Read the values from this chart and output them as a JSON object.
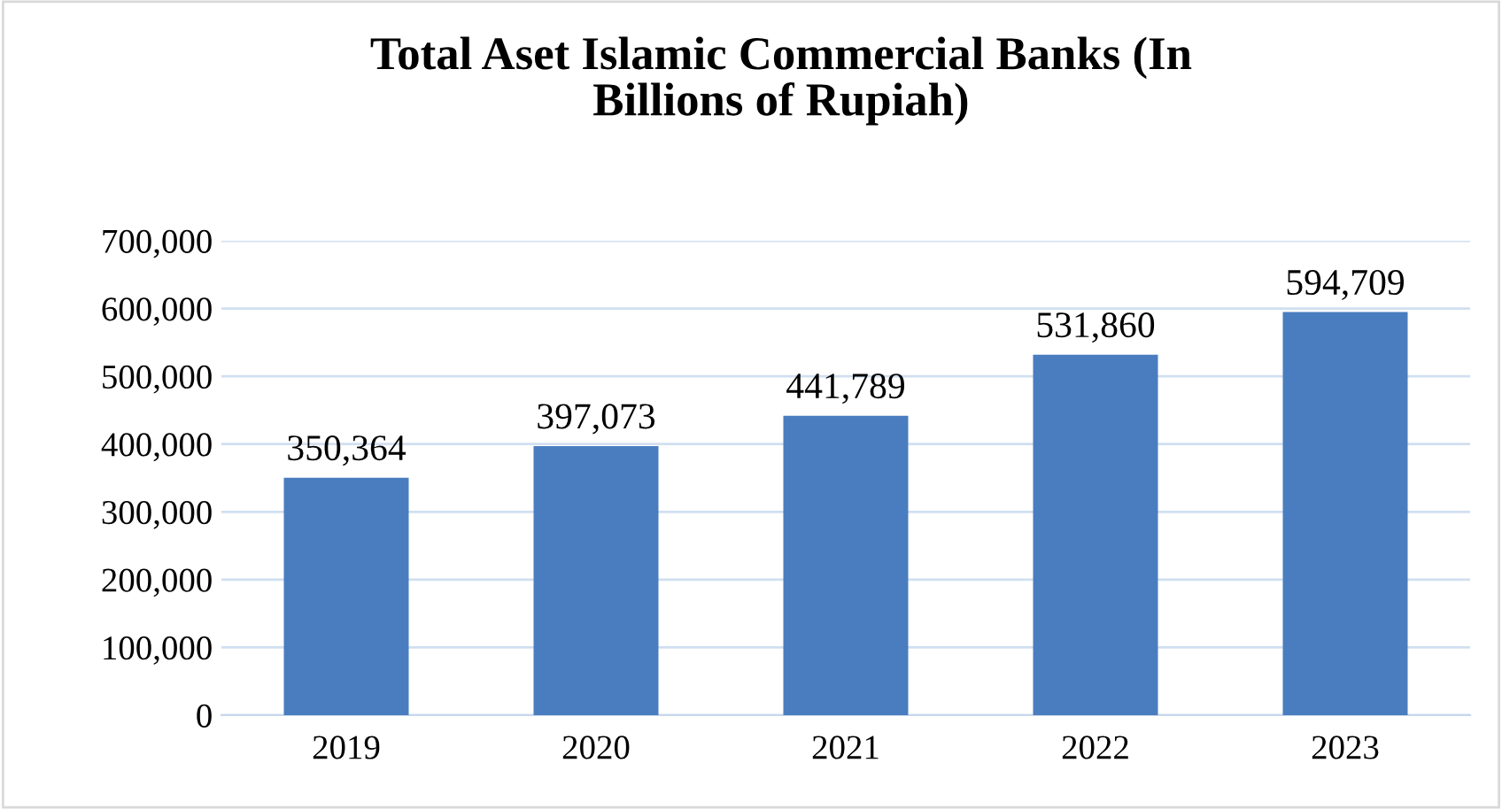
{
  "chart_data": {
    "type": "bar",
    "title": "Total Aset Islamic Commercial Banks (In\nBillions of Rupiah)",
    "categories": [
      "2019",
      "2020",
      "2021",
      "2022",
      "2023"
    ],
    "values": [
      350364,
      397073,
      441789,
      531860,
      594709
    ],
    "color": "#4a7dbf",
    "ylim": [
      0,
      700000
    ],
    "yticks": [
      0,
      {
        "value": 100000,
        "label": "100,000"
      },
      {
        "value": 200000,
        "label": "200,000"
      },
      {
        "value": 300000,
        "label": "300,000"
      },
      {
        "value": 400000,
        "label": "400,000"
      },
      {
        "value": 500000,
        "label": "500,000"
      },
      {
        "value": 600000,
        "label": "600,000"
      },
      {
        "value": 700000,
        "label": "700,000"
      }
    ],
    "grid": "y",
    "value_labels": [
      "350,364",
      "397,073",
      "441,789",
      "531,860",
      "594,709"
    ]
  }
}
